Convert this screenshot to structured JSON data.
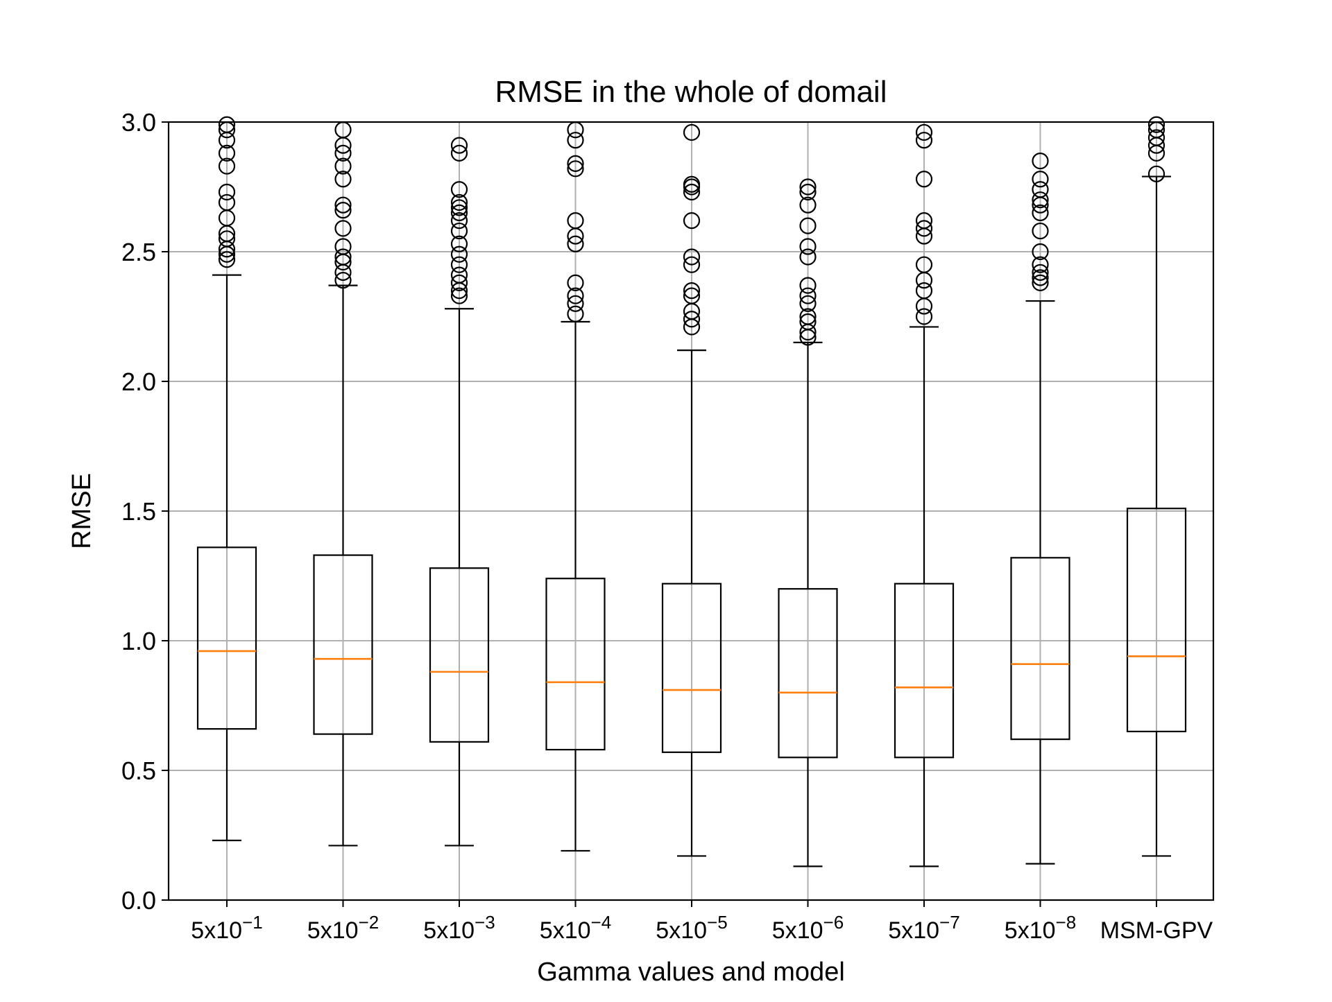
{
  "chart_data": {
    "type": "box",
    "title": "RMSE in the whole of domail",
    "xlabel": "Gamma values and model",
    "ylabel": "RMSE",
    "ylim": [
      0,
      3.0
    ],
    "yticks": [
      "0.0",
      "0.5",
      "1.0",
      "1.5",
      "2.0",
      "2.5",
      "3.0"
    ],
    "grid": true,
    "colors": {
      "box": "#000000",
      "median": "#ff7f0e",
      "grid": "#b0b0b0"
    },
    "categories": [
      {
        "base": "5x10",
        "exp": "−1"
      },
      {
        "base": "5x10",
        "exp": "−2"
      },
      {
        "base": "5x10",
        "exp": "−3"
      },
      {
        "base": "5x10",
        "exp": "−4"
      },
      {
        "base": "5x10",
        "exp": "−5"
      },
      {
        "base": "5x10",
        "exp": "−6"
      },
      {
        "base": "5x10",
        "exp": "−7"
      },
      {
        "base": "5x10",
        "exp": "−8"
      },
      {
        "base": "MSM-GPV",
        "exp": ""
      }
    ],
    "boxes": [
      {
        "whislo": 0.23,
        "q1": 0.66,
        "med": 0.96,
        "q3": 1.36,
        "whishi": 2.41,
        "fliers": [
          2.47,
          2.49,
          2.51,
          2.55,
          2.57,
          2.63,
          2.69,
          2.73,
          2.83,
          2.88,
          2.93,
          2.97,
          2.99
        ]
      },
      {
        "whislo": 0.21,
        "q1": 0.64,
        "med": 0.93,
        "q3": 1.33,
        "whishi": 2.37,
        "fliers": [
          2.39,
          2.42,
          2.46,
          2.48,
          2.52,
          2.59,
          2.66,
          2.68,
          2.78,
          2.83,
          2.88,
          2.91,
          2.97
        ]
      },
      {
        "whislo": 0.21,
        "q1": 0.61,
        "med": 0.88,
        "q3": 1.28,
        "whishi": 2.28,
        "fliers": [
          2.33,
          2.35,
          2.38,
          2.41,
          2.45,
          2.49,
          2.53,
          2.58,
          2.62,
          2.65,
          2.67,
          2.69,
          2.74,
          2.88,
          2.91
        ]
      },
      {
        "whislo": 0.19,
        "q1": 0.58,
        "med": 0.84,
        "q3": 1.24,
        "whishi": 2.23,
        "fliers": [
          2.26,
          2.3,
          2.33,
          2.38,
          2.53,
          2.56,
          2.62,
          2.82,
          2.84,
          2.93,
          2.97
        ]
      },
      {
        "whislo": 0.17,
        "q1": 0.57,
        "med": 0.81,
        "q3": 1.22,
        "whishi": 2.12,
        "fliers": [
          2.21,
          2.24,
          2.27,
          2.33,
          2.35,
          2.45,
          2.48,
          2.62,
          2.73,
          2.75,
          2.76,
          2.96
        ]
      },
      {
        "whislo": 0.13,
        "q1": 0.55,
        "med": 0.8,
        "q3": 1.2,
        "whishi": 2.15,
        "fliers": [
          2.17,
          2.19,
          2.23,
          2.25,
          2.3,
          2.33,
          2.37,
          2.48,
          2.52,
          2.6,
          2.68,
          2.73,
          2.75
        ]
      },
      {
        "whislo": 0.13,
        "q1": 0.55,
        "med": 0.82,
        "q3": 1.22,
        "whishi": 2.21,
        "fliers": [
          2.25,
          2.29,
          2.35,
          2.39,
          2.45,
          2.56,
          2.59,
          2.62,
          2.78,
          2.93,
          2.96
        ]
      },
      {
        "whislo": 0.14,
        "q1": 0.62,
        "med": 0.91,
        "q3": 1.32,
        "whishi": 2.31,
        "fliers": [
          2.38,
          2.4,
          2.42,
          2.45,
          2.5,
          2.58,
          2.65,
          2.68,
          2.7,
          2.74,
          2.78,
          2.85
        ]
      },
      {
        "whislo": 0.17,
        "q1": 0.65,
        "med": 0.94,
        "q3": 1.51,
        "whishi": 2.79,
        "fliers": [
          2.8,
          2.88,
          2.91,
          2.94,
          2.97,
          2.99
        ]
      }
    ]
  }
}
